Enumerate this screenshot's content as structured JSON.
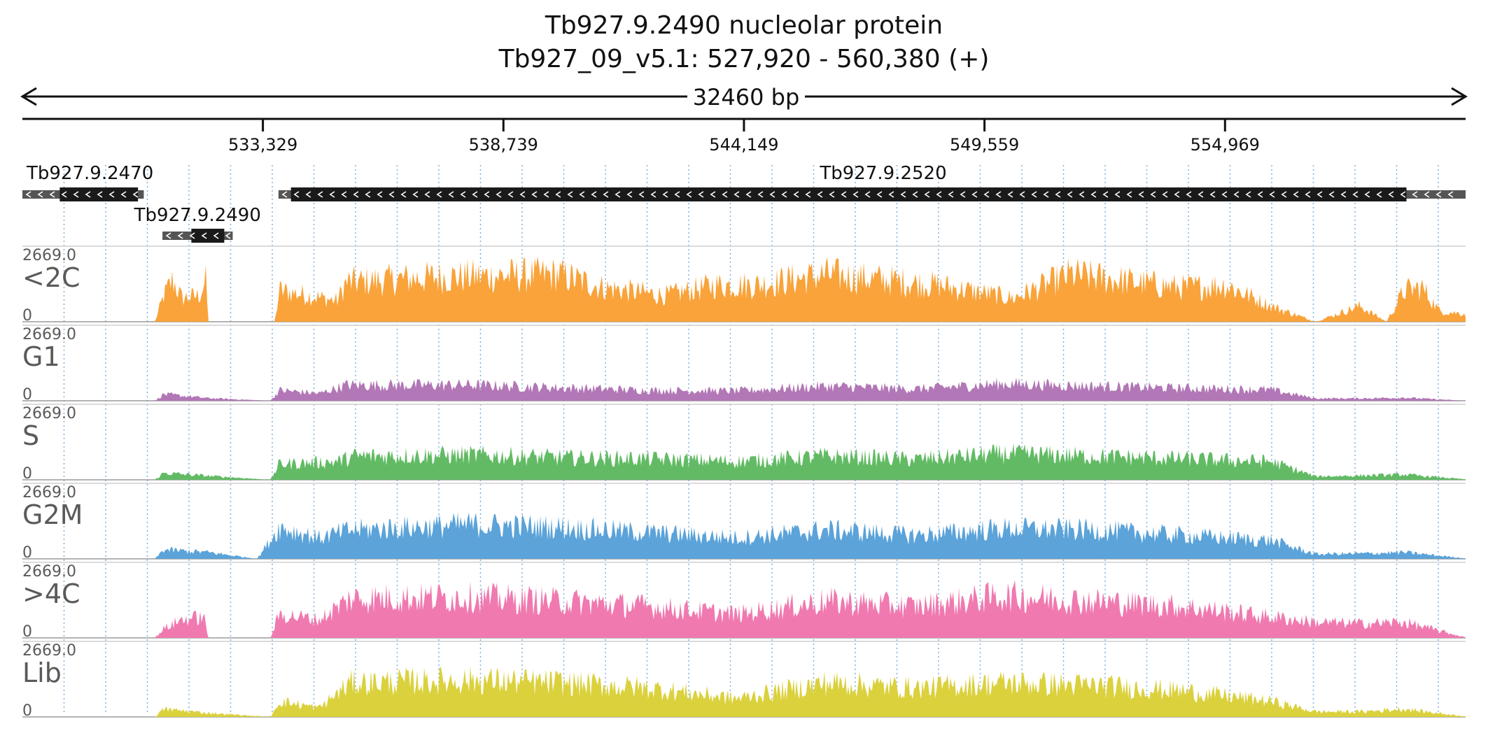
{
  "header": {
    "title": "Tb927.9.2490  nucleolar protein",
    "locus": "Tb927_09_v5.1: 527,920 - 560,380 (+)",
    "span_label": "32460 bp"
  },
  "chart_data": {
    "type": "area",
    "x_range": [
      527920,
      560380
    ],
    "ticks": [
      "533,329",
      "538,739",
      "544,149",
      "549,559",
      "554,969"
    ],
    "tick_positions_bp": [
      533329,
      538739,
      544149,
      549559,
      554969
    ],
    "grid": true,
    "genes": [
      {
        "name": "Tb927.9.2470",
        "start": 527920,
        "end": 530650,
        "cds_start": 528760,
        "cds_end": 530520,
        "strand": "-"
      },
      {
        "name": "Tb927.9.2490",
        "start": 531070,
        "end": 532650,
        "cds_start": 531720,
        "cds_end": 532460,
        "strand": "-"
      },
      {
        "name": "Tb927.9.2520",
        "start": 533680,
        "end": 560380,
        "cds_start": 533960,
        "cds_end": 559050,
        "strand": "-"
      }
    ],
    "tracks": [
      {
        "name": "<2C",
        "color": "#f9a33a",
        "max": "2669.0",
        "min": "0"
      },
      {
        "name": "G1",
        "color": "#b277b6",
        "max": "2669.0",
        "min": "0"
      },
      {
        "name": "S",
        "color": "#62bb64",
        "max": "2669.0",
        "min": "0"
      },
      {
        "name": "G2M",
        "color": "#5ba3d9",
        "max": "2669.0",
        "min": "0"
      },
      {
        "name": ">4C",
        "color": "#f07ab0",
        "max": "2669.0",
        "min": "0"
      },
      {
        "name": "Lib",
        "color": "#dbd13d",
        "max": "2669.0",
        "min": "0"
      }
    ],
    "coverage_profiles": [
      {
        "track": "<2C",
        "points": [
          [
            527920,
            0
          ],
          [
            530900,
            0
          ],
          [
            531100,
            1000
          ],
          [
            531300,
            1600
          ],
          [
            531500,
            900
          ],
          [
            531900,
            1000
          ],
          [
            532050,
            1600
          ],
          [
            532100,
            0
          ],
          [
            533600,
            0
          ],
          [
            533700,
            1200
          ],
          [
            535000,
            800
          ],
          [
            535200,
            1500
          ],
          [
            537200,
            1700
          ],
          [
            540000,
            1800
          ],
          [
            541000,
            1300
          ],
          [
            542400,
            1000
          ],
          [
            543500,
            1400
          ],
          [
            544400,
            1400
          ],
          [
            546000,
            1800
          ],
          [
            548500,
            1400
          ],
          [
            550200,
            900
          ],
          [
            551500,
            1800
          ],
          [
            554000,
            1300
          ],
          [
            555000,
            1400
          ],
          [
            556000,
            600
          ],
          [
            557000,
            0
          ],
          [
            558000,
            600
          ],
          [
            558600,
            0
          ],
          [
            559000,
            1200
          ],
          [
            559400,
            1300
          ],
          [
            559800,
            400
          ],
          [
            560380,
            300
          ]
        ]
      },
      {
        "track": "G1",
        "points": [
          [
            527920,
            0
          ],
          [
            530900,
            0
          ],
          [
            531100,
            250
          ],
          [
            532100,
            100
          ],
          [
            533500,
            0
          ],
          [
            533700,
            400
          ],
          [
            534600,
            280
          ],
          [
            535200,
            600
          ],
          [
            538000,
            600
          ],
          [
            540000,
            500
          ],
          [
            542000,
            400
          ],
          [
            544000,
            380
          ],
          [
            546000,
            560
          ],
          [
            548000,
            450
          ],
          [
            550000,
            650
          ],
          [
            552000,
            560
          ],
          [
            554000,
            480
          ],
          [
            556000,
            420
          ],
          [
            557000,
            90
          ],
          [
            558000,
            90
          ],
          [
            559000,
            120
          ],
          [
            560380,
            0
          ]
        ]
      },
      {
        "track": "S",
        "points": [
          [
            527920,
            0
          ],
          [
            530900,
            0
          ],
          [
            531100,
            260
          ],
          [
            532100,
            150
          ],
          [
            533500,
            0
          ],
          [
            533700,
            600
          ],
          [
            535000,
            700
          ],
          [
            535400,
            900
          ],
          [
            538000,
            950
          ],
          [
            540000,
            850
          ],
          [
            542000,
            800
          ],
          [
            544000,
            700
          ],
          [
            546000,
            900
          ],
          [
            548000,
            780
          ],
          [
            550000,
            1000
          ],
          [
            552000,
            900
          ],
          [
            554000,
            800
          ],
          [
            556000,
            700
          ],
          [
            557000,
            130
          ],
          [
            558000,
            160
          ],
          [
            559000,
            200
          ],
          [
            560380,
            20
          ]
        ]
      },
      {
        "track": "G2M",
        "points": [
          [
            527920,
            0
          ],
          [
            530900,
            0
          ],
          [
            531100,
            350
          ],
          [
            532100,
            250
          ],
          [
            533200,
            0
          ],
          [
            533700,
            1200
          ],
          [
            534600,
            800
          ],
          [
            535300,
            1100
          ],
          [
            538000,
            1300
          ],
          [
            540000,
            1200
          ],
          [
            542000,
            1000
          ],
          [
            544000,
            800
          ],
          [
            546000,
            1100
          ],
          [
            548000,
            900
          ],
          [
            550000,
            1150
          ],
          [
            552000,
            1100
          ],
          [
            554000,
            900
          ],
          [
            556000,
            700
          ],
          [
            557000,
            180
          ],
          [
            558000,
            200
          ],
          [
            559000,
            250
          ],
          [
            560380,
            20
          ]
        ]
      },
      {
        "track": ">4C",
        "points": [
          [
            527920,
            0
          ],
          [
            530900,
            0
          ],
          [
            531100,
            350
          ],
          [
            531500,
            700
          ],
          [
            532000,
            800
          ],
          [
            532100,
            0
          ],
          [
            533500,
            0
          ],
          [
            533700,
            900
          ],
          [
            534600,
            700
          ],
          [
            535300,
            1500
          ],
          [
            538000,
            1550
          ],
          [
            540000,
            1400
          ],
          [
            542000,
            1200
          ],
          [
            544000,
            900
          ],
          [
            546000,
            1400
          ],
          [
            548000,
            1200
          ],
          [
            550000,
            1600
          ],
          [
            552000,
            1400
          ],
          [
            554000,
            1200
          ],
          [
            556000,
            800
          ],
          [
            557000,
            600
          ],
          [
            558000,
            550
          ],
          [
            559000,
            600
          ],
          [
            560380,
            20
          ]
        ]
      },
      {
        "track": "Lib",
        "points": [
          [
            527920,
            0
          ],
          [
            530900,
            0
          ],
          [
            531100,
            300
          ],
          [
            532100,
            150
          ],
          [
            533500,
            0
          ],
          [
            533700,
            600
          ],
          [
            534600,
            350
          ],
          [
            535300,
            1300
          ],
          [
            538000,
            1400
          ],
          [
            540000,
            1300
          ],
          [
            542000,
            1100
          ],
          [
            544000,
            700
          ],
          [
            546000,
            1300
          ],
          [
            548000,
            1100
          ],
          [
            550000,
            1300
          ],
          [
            552000,
            1200
          ],
          [
            554000,
            1000
          ],
          [
            556000,
            600
          ],
          [
            557000,
            200
          ],
          [
            558000,
            200
          ],
          [
            559000,
            300
          ],
          [
            560380,
            20
          ]
        ]
      }
    ]
  }
}
